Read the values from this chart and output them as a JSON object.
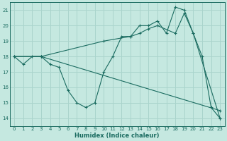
{
  "title": "",
  "xlabel": "Humidex (Indice chaleur)",
  "xlim": [
    -0.5,
    23.5
  ],
  "ylim": [
    13.5,
    21.5
  ],
  "yticks": [
    14,
    15,
    16,
    17,
    18,
    19,
    20,
    21
  ],
  "xticks": [
    0,
    1,
    2,
    3,
    4,
    5,
    6,
    7,
    8,
    9,
    10,
    11,
    12,
    13,
    14,
    15,
    16,
    17,
    18,
    19,
    20,
    21,
    22,
    23
  ],
  "bg_color": "#c5e8e0",
  "grid_color": "#aad4cc",
  "line_color": "#1a6b60",
  "series1": [
    [
      0,
      18.0
    ],
    [
      1,
      17.5
    ],
    [
      2,
      18.0
    ],
    [
      3,
      18.0
    ],
    [
      4,
      17.5
    ],
    [
      5,
      17.3
    ],
    [
      6,
      15.8
    ],
    [
      7,
      15.0
    ],
    [
      8,
      14.7
    ],
    [
      9,
      15.0
    ],
    [
      10,
      17.0
    ],
    [
      11,
      18.0
    ],
    [
      12,
      19.3
    ],
    [
      13,
      19.3
    ],
    [
      14,
      20.0
    ],
    [
      15,
      20.0
    ],
    [
      16,
      20.3
    ],
    [
      17,
      19.5
    ],
    [
      18,
      21.2
    ],
    [
      19,
      21.0
    ],
    [
      20,
      19.5
    ],
    [
      21,
      18.0
    ],
    [
      22,
      14.7
    ],
    [
      23,
      14.0
    ]
  ],
  "series2": [
    [
      0,
      18.0
    ],
    [
      3,
      18.0
    ],
    [
      10,
      19.0
    ],
    [
      13,
      19.3
    ],
    [
      14,
      19.5
    ],
    [
      15,
      19.8
    ],
    [
      16,
      20.0
    ],
    [
      18,
      19.5
    ],
    [
      19,
      20.8
    ],
    [
      20,
      19.5
    ],
    [
      23,
      14.0
    ]
  ],
  "series3": [
    [
      0,
      18.0
    ],
    [
      3,
      18.0
    ],
    [
      23,
      14.5
    ]
  ]
}
